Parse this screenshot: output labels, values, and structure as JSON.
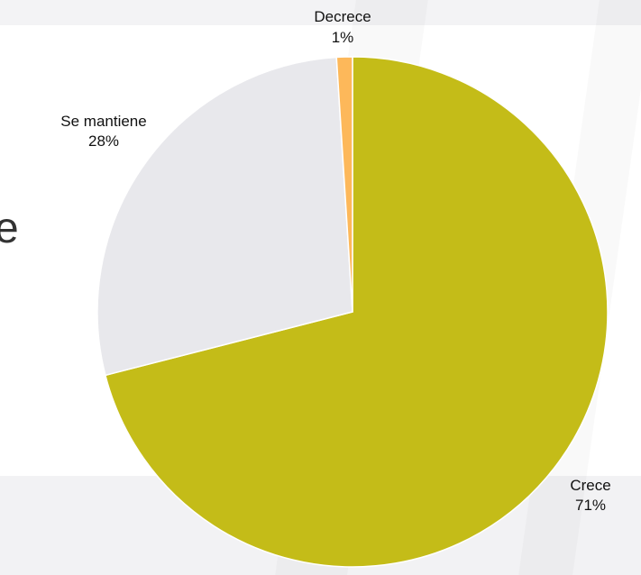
{
  "background": {
    "partial_text": "e"
  },
  "chart_data": {
    "type": "pie",
    "categories": [
      "Crece",
      "Se mantiene",
      "Decrece"
    ],
    "values": [
      71,
      28,
      1
    ],
    "value_labels": [
      "71%",
      "28%",
      "1%"
    ],
    "colors": [
      "#c4bc18",
      "#e8e8ec",
      "#fdb85a"
    ],
    "title": "",
    "start_angle_deg": 0,
    "direction": "clockwise"
  }
}
